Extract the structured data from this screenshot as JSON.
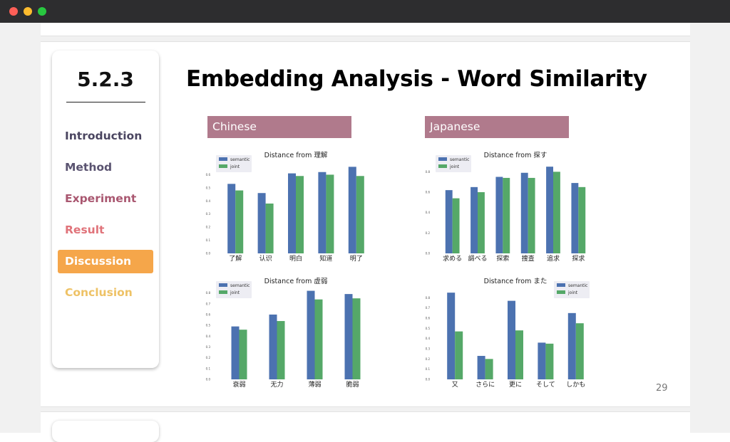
{
  "theme": {
    "bar_semantic": "#4c72b0",
    "bar_joint": "#55a868",
    "tag_color": "#b07a8c",
    "nav_active_bg": "#f5a64a"
  },
  "sidebar": {
    "section_number": "5.2.3",
    "items": [
      {
        "label": "Introduction",
        "color": "#4a4560",
        "active": false
      },
      {
        "label": "Method",
        "color": "#5a5370",
        "active": false
      },
      {
        "label": "Experiment",
        "color": "#a95770",
        "active": false
      },
      {
        "label": "Result",
        "color": "#e0737a",
        "active": false
      },
      {
        "label": "Discussion",
        "color": "#ffffff",
        "active": true
      },
      {
        "label": "Conclusion",
        "color": "#eec266",
        "active": false
      }
    ]
  },
  "slide": {
    "title": "Embedding Analysis - Word Similarity",
    "page_number": "29",
    "tags": {
      "chinese": "Chinese",
      "japanese": "Japanese"
    }
  },
  "chart_data": [
    {
      "type": "bar",
      "title": "Distance from 理解",
      "categories": [
        "了解",
        "认识",
        "明白",
        "知道",
        "明了"
      ],
      "series": [
        {
          "name": "semantic",
          "values": [
            0.53,
            0.46,
            0.61,
            0.62,
            0.66
          ]
        },
        {
          "name": "joint",
          "values": [
            0.48,
            0.38,
            0.59,
            0.6,
            0.59
          ]
        }
      ],
      "ylim": [
        0.0,
        0.7
      ],
      "yticks": [
        "0.0",
        "0.1",
        "0.2",
        "0.3",
        "0.4",
        "0.5",
        "0.6"
      ],
      "legend": "top-left"
    },
    {
      "type": "bar",
      "title": "Distance from 探す",
      "categories": [
        "求める",
        "調べる",
        "探索",
        "捜査",
        "追求",
        "探求"
      ],
      "series": [
        {
          "name": "semantic",
          "values": [
            0.62,
            0.65,
            0.75,
            0.79,
            0.85,
            0.69
          ]
        },
        {
          "name": "joint",
          "values": [
            0.54,
            0.6,
            0.74,
            0.74,
            0.8,
            0.65
          ]
        }
      ],
      "ylim": [
        0.0,
        0.9
      ],
      "yticks": [
        "0.0",
        "0.2",
        "0.4",
        "0.6",
        "0.8"
      ],
      "legend": "top-left"
    },
    {
      "type": "bar",
      "title": "Distance from 虚弱",
      "categories": [
        "衰弱",
        "无力",
        "薄弱",
        "脆弱"
      ],
      "series": [
        {
          "name": "semantic",
          "values": [
            0.49,
            0.6,
            0.82,
            0.79
          ]
        },
        {
          "name": "joint",
          "values": [
            0.46,
            0.54,
            0.74,
            0.75
          ]
        }
      ],
      "ylim": [
        0.0,
        0.85
      ],
      "yticks": [
        "0.0",
        "0.1",
        "0.2",
        "0.3",
        "0.4",
        "0.5",
        "0.6",
        "0.7",
        "0.8"
      ],
      "legend": "top-left"
    },
    {
      "type": "bar",
      "title": "Distance from また",
      "categories": [
        "又",
        "さらに",
        "更に",
        "そして",
        "しかも"
      ],
      "series": [
        {
          "name": "semantic",
          "values": [
            0.85,
            0.23,
            0.77,
            0.36,
            0.65
          ]
        },
        {
          "name": "joint",
          "values": [
            0.47,
            0.2,
            0.48,
            0.35,
            0.55
          ]
        }
      ],
      "ylim": [
        0.0,
        0.9
      ],
      "yticks": [
        "0.0",
        "0.1",
        "0.2",
        "0.3",
        "0.4",
        "0.5",
        "0.6",
        "0.7",
        "0.8"
      ],
      "legend": "top-right"
    }
  ]
}
